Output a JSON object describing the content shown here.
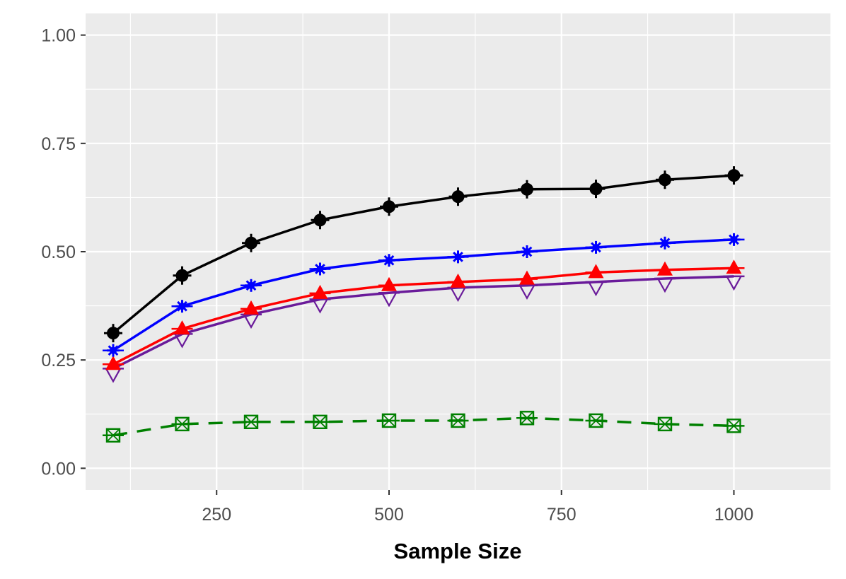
{
  "chart_data": {
    "type": "line",
    "title": "",
    "xlabel": "Sample Size",
    "ylabel": "",
    "xlim": [
      60,
      1140
    ],
    "ylim": [
      -0.05,
      1.05
    ],
    "x_ticks": [
      250,
      500,
      750,
      1000
    ],
    "x_minor_ticks": [
      125,
      375,
      625,
      875
    ],
    "y_ticks": [
      0.0,
      0.25,
      0.5,
      0.75,
      1.0
    ],
    "y_minor_ticks": [
      0.125,
      0.375,
      0.625,
      0.875
    ],
    "x_tick_labels": [
      "250",
      "500",
      "750",
      "1000"
    ],
    "y_tick_labels": [
      "0.00",
      "0.25",
      "0.50",
      "0.75",
      "1.00"
    ],
    "grid": true,
    "legend": "none",
    "x": [
      100,
      200,
      300,
      400,
      500,
      600,
      700,
      800,
      900,
      1000
    ],
    "series": [
      {
        "color": "#000000",
        "marker": "filled-circle-plus",
        "line_style": "solid",
        "values": [
          0.312,
          0.445,
          0.52,
          0.573,
          0.604,
          0.627,
          0.644,
          0.645,
          0.666,
          0.676
        ]
      },
      {
        "color": "#0000ff",
        "marker": "star",
        "line_style": "solid",
        "values": [
          0.272,
          0.374,
          0.422,
          0.46,
          0.48,
          0.488,
          0.5,
          0.51,
          0.52,
          0.528
        ]
      },
      {
        "color": "#ff0000",
        "marker": "filled-triangle",
        "line_style": "solid",
        "values": [
          0.24,
          0.322,
          0.368,
          0.404,
          0.422,
          0.43,
          0.437,
          0.452,
          0.458,
          0.462
        ]
      },
      {
        "color": "#6a1b9a",
        "marker": "open-triangle-down",
        "line_style": "solid",
        "values": [
          0.23,
          0.31,
          0.355,
          0.39,
          0.405,
          0.417,
          0.422,
          0.43,
          0.438,
          0.443
        ]
      },
      {
        "color": "#008000",
        "marker": "boxed-x",
        "line_style": "dashed",
        "values": [
          0.076,
          0.102,
          0.107,
          0.107,
          0.11,
          0.11,
          0.116,
          0.11,
          0.102,
          0.098
        ]
      }
    ]
  }
}
